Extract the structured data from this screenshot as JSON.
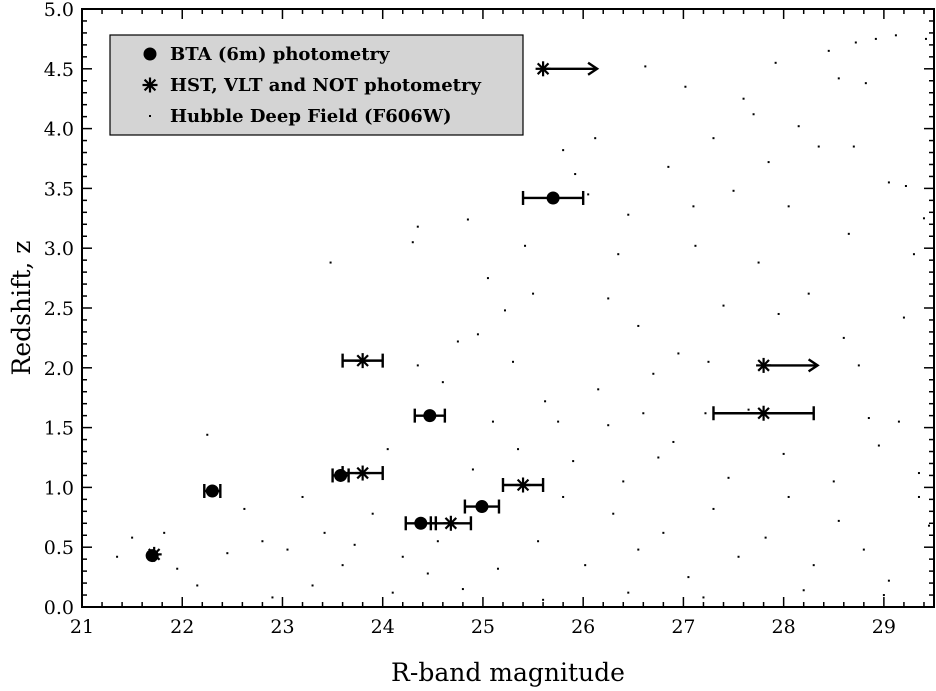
{
  "chart_data": {
    "type": "scatter",
    "xlabel": "R-band magnitude",
    "ylabel": "Redshift, z",
    "xlim": [
      21,
      29.5
    ],
    "ylim": [
      0.0,
      5.0
    ],
    "x_ticks": [
      "21",
      "22",
      "23",
      "24",
      "25",
      "26",
      "27",
      "28",
      "29"
    ],
    "y_ticks": [
      "0.0",
      "0.5",
      "1.0",
      "1.5",
      "2.0",
      "2.5",
      "3.0",
      "3.5",
      "4.0",
      "4.5",
      "5.0"
    ],
    "grid": false,
    "legend_position": "top-left",
    "legend": [
      {
        "label": "BTA (6m) photometry",
        "marker": "filled-circle"
      },
      {
        "label": "HST, VLT and NOT photometry",
        "marker": "asterisk"
      },
      {
        "label": "Hubble Deep Field (F606W)",
        "marker": "dot"
      }
    ],
    "series": [
      {
        "name": "BTA (6m) photometry",
        "marker": "filled-circle",
        "points": [
          {
            "x": 21.7,
            "y": 0.43
          },
          {
            "x": 22.3,
            "y": 0.97,
            "xerr": 0.08
          },
          {
            "x": 23.58,
            "y": 1.1,
            "xerr": 0.08
          },
          {
            "x": 24.38,
            "y": 0.7,
            "xerr": 0.15
          },
          {
            "x": 24.47,
            "y": 1.6,
            "xerr": 0.15
          },
          {
            "x": 24.99,
            "y": 0.84,
            "xerr": 0.17
          },
          {
            "x": 25.7,
            "y": 3.42,
            "xerr": 0.3
          }
        ]
      },
      {
        "name": "HST, VLT and NOT photometry",
        "marker": "asterisk",
        "points": [
          {
            "x": 21.72,
            "y": 0.44
          },
          {
            "x": 23.8,
            "y": 1.12,
            "xerr": 0.2
          },
          {
            "x": 23.8,
            "y": 2.06,
            "xerr": 0.2
          },
          {
            "x": 24.68,
            "y": 0.7,
            "xerr": 0.2
          },
          {
            "x": 25.4,
            "y": 1.02,
            "xerr": 0.2
          },
          {
            "x": 25.6,
            "y": 4.5,
            "lower_limit": true
          },
          {
            "x": 27.8,
            "y": 1.62,
            "xerr": 0.5
          },
          {
            "x": 27.8,
            "y": 2.02,
            "lower_limit": true
          }
        ]
      },
      {
        "name": "Hubble Deep Field (F606W)",
        "marker": "dot",
        "points": [
          {
            "x": 21.35,
            "y": 0.42
          },
          {
            "x": 21.5,
            "y": 0.58
          },
          {
            "x": 21.82,
            "y": 0.62
          },
          {
            "x": 22.25,
            "y": 1.44
          },
          {
            "x": 22.45,
            "y": 0.45
          },
          {
            "x": 22.62,
            "y": 0.82
          },
          {
            "x": 22.8,
            "y": 0.55
          },
          {
            "x": 23.05,
            "y": 0.48
          },
          {
            "x": 23.2,
            "y": 0.92
          },
          {
            "x": 23.42,
            "y": 0.62
          },
          {
            "x": 23.48,
            "y": 2.88
          },
          {
            "x": 23.72,
            "y": 0.52
          },
          {
            "x": 23.9,
            "y": 0.78
          },
          {
            "x": 24.05,
            "y": 1.32
          },
          {
            "x": 24.2,
            "y": 0.42
          },
          {
            "x": 24.3,
            "y": 3.05
          },
          {
            "x": 24.35,
            "y": 3.18
          },
          {
            "x": 24.35,
            "y": 2.02
          },
          {
            "x": 24.45,
            "y": 0.28
          },
          {
            "x": 24.6,
            "y": 1.88
          },
          {
            "x": 24.75,
            "y": 2.22
          },
          {
            "x": 24.85,
            "y": 3.24
          },
          {
            "x": 24.95,
            "y": 2.28
          },
          {
            "x": 25.1,
            "y": 1.55
          },
          {
            "x": 25.22,
            "y": 2.48
          },
          {
            "x": 25.3,
            "y": 2.05
          },
          {
            "x": 25.42,
            "y": 3.02
          },
          {
            "x": 25.5,
            "y": 2.62
          },
          {
            "x": 25.62,
            "y": 1.72
          },
          {
            "x": 25.8,
            "y": 3.82
          },
          {
            "x": 25.92,
            "y": 3.62
          },
          {
            "x": 26.05,
            "y": 3.45
          },
          {
            "x": 26.12,
            "y": 3.92
          },
          {
            "x": 26.25,
            "y": 1.52
          },
          {
            "x": 26.35,
            "y": 2.95
          },
          {
            "x": 26.45,
            "y": 3.28
          },
          {
            "x": 26.55,
            "y": 2.35
          },
          {
            "x": 26.62,
            "y": 4.52
          },
          {
            "x": 26.75,
            "y": 1.25
          },
          {
            "x": 26.85,
            "y": 3.68
          },
          {
            "x": 26.95,
            "y": 2.12
          },
          {
            "x": 27.02,
            "y": 4.35
          },
          {
            "x": 27.12,
            "y": 3.02
          },
          {
            "x": 27.22,
            "y": 1.62
          },
          {
            "x": 27.3,
            "y": 3.92
          },
          {
            "x": 27.4,
            "y": 2.52
          },
          {
            "x": 27.5,
            "y": 3.48
          },
          {
            "x": 27.6,
            "y": 4.25
          },
          {
            "x": 27.75,
            "y": 2.88
          },
          {
            "x": 27.85,
            "y": 3.72
          },
          {
            "x": 27.92,
            "y": 4.55
          },
          {
            "x": 28.05,
            "y": 3.35
          },
          {
            "x": 28.15,
            "y": 4.02
          },
          {
            "x": 28.25,
            "y": 2.62
          },
          {
            "x": 28.35,
            "y": 3.85
          },
          {
            "x": 28.45,
            "y": 4.65
          },
          {
            "x": 28.55,
            "y": 4.42
          },
          {
            "x": 28.65,
            "y": 3.12
          },
          {
            "x": 28.72,
            "y": 4.72
          },
          {
            "x": 28.82,
            "y": 4.38
          },
          {
            "x": 28.92,
            "y": 4.75
          },
          {
            "x": 29.05,
            "y": 3.55
          },
          {
            "x": 29.12,
            "y": 4.78
          },
          {
            "x": 29.22,
            "y": 3.52
          },
          {
            "x": 29.3,
            "y": 2.95
          },
          {
            "x": 29.42,
            "y": 4.75
          },
          {
            "x": 28.75,
            "y": 2.02
          },
          {
            "x": 29.15,
            "y": 1.55
          },
          {
            "x": 29.35,
            "y": 1.12
          },
          {
            "x": 29.45,
            "y": 0.68
          },
          {
            "x": 25.55,
            "y": 0.55
          },
          {
            "x": 25.8,
            "y": 0.92
          },
          {
            "x": 26.02,
            "y": 0.35
          },
          {
            "x": 26.3,
            "y": 0.78
          },
          {
            "x": 26.55,
            "y": 0.48
          },
          {
            "x": 26.8,
            "y": 0.62
          },
          {
            "x": 27.05,
            "y": 0.25
          },
          {
            "x": 27.3,
            "y": 0.82
          },
          {
            "x": 27.55,
            "y": 0.42
          },
          {
            "x": 27.82,
            "y": 0.58
          },
          {
            "x": 28.05,
            "y": 0.92
          },
          {
            "x": 28.3,
            "y": 0.35
          },
          {
            "x": 28.55,
            "y": 0.72
          },
          {
            "x": 28.8,
            "y": 0.48
          },
          {
            "x": 29.05,
            "y": 0.22
          },
          {
            "x": 29.35,
            "y": 0.92
          },
          {
            "x": 25.35,
            "y": 1.32
          },
          {
            "x": 25.9,
            "y": 1.22
          },
          {
            "x": 26.4,
            "y": 1.05
          },
          {
            "x": 26.9,
            "y": 1.38
          },
          {
            "x": 27.45,
            "y": 1.08
          },
          {
            "x": 28.0,
            "y": 1.28
          },
          {
            "x": 28.5,
            "y": 1.05
          },
          {
            "x": 28.95,
            "y": 1.35
          },
          {
            "x": 26.15,
            "y": 1.82
          },
          {
            "x": 26.7,
            "y": 1.95
          },
          {
            "x": 27.25,
            "y": 2.05
          },
          {
            "x": 28.6,
            "y": 2.25
          },
          {
            "x": 29.2,
            "y": 2.42
          },
          {
            "x": 24.1,
            "y": 0.12
          },
          {
            "x": 23.3,
            "y": 0.18
          },
          {
            "x": 22.9,
            "y": 0.08
          },
          {
            "x": 24.8,
            "y": 0.15
          },
          {
            "x": 25.6,
            "y": 0.06
          },
          {
            "x": 26.45,
            "y": 0.12
          },
          {
            "x": 27.2,
            "y": 0.08
          },
          {
            "x": 28.2,
            "y": 0.14
          },
          {
            "x": 29.0,
            "y": 0.1
          },
          {
            "x": 21.95,
            "y": 0.32
          },
          {
            "x": 22.15,
            "y": 0.18
          },
          {
            "x": 23.6,
            "y": 0.35
          },
          {
            "x": 24.55,
            "y": 0.55
          },
          {
            "x": 24.9,
            "y": 1.15
          },
          {
            "x": 25.15,
            "y": 0.32
          },
          {
            "x": 25.75,
            "y": 1.55
          },
          {
            "x": 26.6,
            "y": 1.62
          },
          {
            "x": 27.65,
            "y": 1.65
          },
          {
            "x": 28.85,
            "y": 1.58
          },
          {
            "x": 27.1,
            "y": 3.35
          },
          {
            "x": 28.7,
            "y": 3.85
          },
          {
            "x": 25.05,
            "y": 2.75
          },
          {
            "x": 26.25,
            "y": 2.58
          },
          {
            "x": 27.95,
            "y": 2.45
          },
          {
            "x": 29.4,
            "y": 3.25
          },
          {
            "x": 27.7,
            "y": 4.12
          }
        ]
      }
    ]
  }
}
